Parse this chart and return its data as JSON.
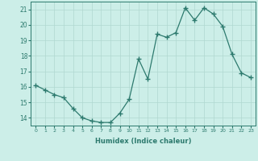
{
  "x": [
    0,
    1,
    2,
    3,
    4,
    5,
    6,
    7,
    8,
    9,
    10,
    11,
    12,
    13,
    14,
    15,
    16,
    17,
    18,
    19,
    20,
    21,
    22,
    23
  ],
  "y": [
    16.1,
    15.8,
    15.5,
    15.3,
    14.6,
    14.0,
    13.8,
    13.7,
    13.7,
    14.3,
    15.2,
    17.8,
    16.5,
    19.4,
    19.2,
    19.5,
    21.1,
    20.3,
    21.1,
    20.7,
    19.9,
    18.1,
    16.9,
    16.6
  ],
  "line_color": "#2d7a6e",
  "marker": "+",
  "marker_size": 4,
  "bg_color": "#cceee8",
  "grid_color": "#b0d8d0",
  "xlabel": "Humidex (Indice chaleur)",
  "ylim": [
    13.5,
    21.5
  ],
  "xlim": [
    -0.5,
    23.5
  ],
  "yticks": [
    14,
    15,
    16,
    17,
    18,
    19,
    20,
    21
  ],
  "xticks": [
    0,
    1,
    2,
    3,
    4,
    5,
    6,
    7,
    8,
    9,
    10,
    11,
    12,
    13,
    14,
    15,
    16,
    17,
    18,
    19,
    20,
    21,
    22,
    23
  ],
  "tick_color": "#2d7a6e",
  "label_color": "#2d7a6e"
}
